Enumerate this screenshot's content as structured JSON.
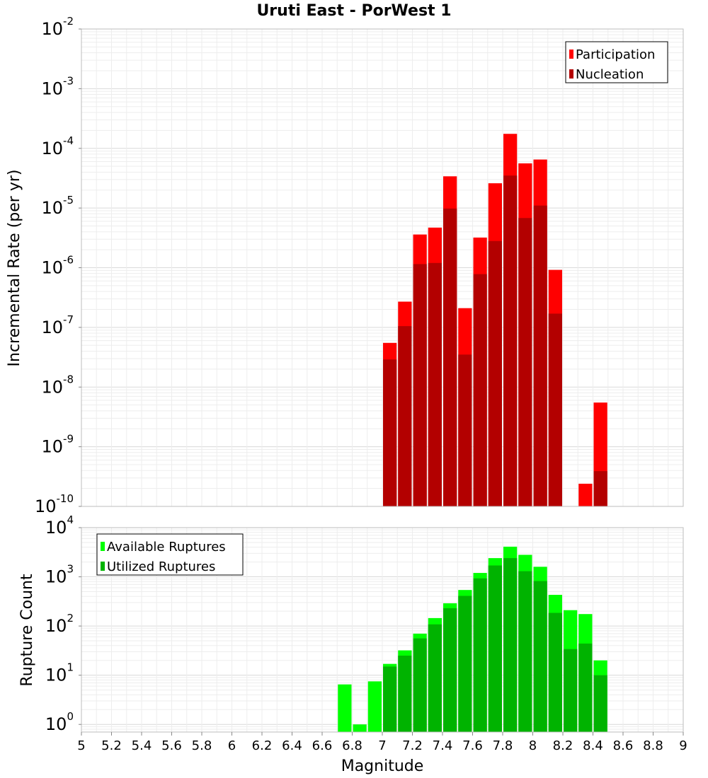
{
  "title": "Uruti East - PorWest 1",
  "xlabel": "Magnitude",
  "chart_data": [
    {
      "type": "bar",
      "ylabel": "Incremental Rate (per yr)",
      "y_scale": "log",
      "xlim": [
        5,
        9
      ],
      "ylim": [
        1e-10,
        0.01
      ],
      "grid": true,
      "legend_position": "top-right",
      "bin_width": 0.1,
      "series": [
        {
          "name": "Participation",
          "color": "#ff0000",
          "points": [
            {
              "x": 7.05,
              "y": 5.5e-08
            },
            {
              "x": 7.15,
              "y": 2.7e-07
            },
            {
              "x": 7.25,
              "y": 3.6e-06
            },
            {
              "x": 7.35,
              "y": 4.7e-06
            },
            {
              "x": 7.45,
              "y": 3.4e-05
            },
            {
              "x": 7.55,
              "y": 2.1e-07
            },
            {
              "x": 7.65,
              "y": 3.2e-06
            },
            {
              "x": 7.75,
              "y": 2.6e-05
            },
            {
              "x": 7.85,
              "y": 0.000175
            },
            {
              "x": 7.95,
              "y": 5.6e-05
            },
            {
              "x": 8.05,
              "y": 6.5e-05
            },
            {
              "x": 8.15,
              "y": 9.2e-07
            },
            {
              "x": 8.35,
              "y": 2.4e-10
            },
            {
              "x": 8.45,
              "y": 5.5e-09
            }
          ]
        },
        {
          "name": "Nucleation",
          "color": "#b30000",
          "points": [
            {
              "x": 7.05,
              "y": 2.9e-08
            },
            {
              "x": 7.15,
              "y": 1.05e-07
            },
            {
              "x": 7.25,
              "y": 1.15e-06
            },
            {
              "x": 7.35,
              "y": 1.2e-06
            },
            {
              "x": 7.45,
              "y": 9.8e-06
            },
            {
              "x": 7.55,
              "y": 3.5e-08
            },
            {
              "x": 7.65,
              "y": 7.8e-07
            },
            {
              "x": 7.75,
              "y": 2.8e-06
            },
            {
              "x": 7.85,
              "y": 3.5e-05
            },
            {
              "x": 7.95,
              "y": 6.8e-06
            },
            {
              "x": 8.05,
              "y": 1.1e-05
            },
            {
              "x": 8.15,
              "y": 1.7e-07
            },
            {
              "x": 8.45,
              "y": 3.9e-10
            }
          ]
        }
      ]
    },
    {
      "type": "bar",
      "ylabel": "Rupture Count",
      "y_scale": "log",
      "xlim": [
        5,
        9
      ],
      "ylim": [
        0.7,
        10000
      ],
      "grid": true,
      "legend_position": "top-left",
      "bin_width": 0.1,
      "series": [
        {
          "name": "Available Ruptures",
          "color": "#00ff00",
          "points": [
            {
              "x": 6.75,
              "y": 6.5
            },
            {
              "x": 6.85,
              "y": 1
            },
            {
              "x": 6.95,
              "y": 7.5
            },
            {
              "x": 7.05,
              "y": 17
            },
            {
              "x": 7.15,
              "y": 32
            },
            {
              "x": 7.25,
              "y": 70
            },
            {
              "x": 7.35,
              "y": 145
            },
            {
              "x": 7.45,
              "y": 290
            },
            {
              "x": 7.55,
              "y": 540
            },
            {
              "x": 7.65,
              "y": 1200
            },
            {
              "x": 7.75,
              "y": 2400
            },
            {
              "x": 7.85,
              "y": 4100
            },
            {
              "x": 7.95,
              "y": 2800
            },
            {
              "x": 8.05,
              "y": 1600
            },
            {
              "x": 8.15,
              "y": 430
            },
            {
              "x": 8.25,
              "y": 210
            },
            {
              "x": 8.35,
              "y": 175
            },
            {
              "x": 8.45,
              "y": 20
            }
          ]
        },
        {
          "name": "Utilized Ruptures",
          "color": "#00b300",
          "points": [
            {
              "x": 7.05,
              "y": 15
            },
            {
              "x": 7.15,
              "y": 25
            },
            {
              "x": 7.25,
              "y": 56
            },
            {
              "x": 7.35,
              "y": 108
            },
            {
              "x": 7.45,
              "y": 230
            },
            {
              "x": 7.55,
              "y": 410
            },
            {
              "x": 7.65,
              "y": 930
            },
            {
              "x": 7.75,
              "y": 1700
            },
            {
              "x": 7.85,
              "y": 2400
            },
            {
              "x": 7.95,
              "y": 1300
            },
            {
              "x": 8.05,
              "y": 820
            },
            {
              "x": 8.15,
              "y": 185
            },
            {
              "x": 8.25,
              "y": 34
            },
            {
              "x": 8.35,
              "y": 44
            },
            {
              "x": 8.45,
              "y": 10
            }
          ]
        }
      ]
    }
  ],
  "x_tick_labels": [
    "5",
    "5.2",
    "5.4",
    "5.6",
    "5.8",
    "6",
    "6.2",
    "6.4",
    "6.6",
    "6.8",
    "7",
    "7.2",
    "7.4",
    "7.6",
    "7.8",
    "8",
    "8.2",
    "8.4",
    "8.6",
    "8.8",
    "9"
  ],
  "top_y_tick_labels": [
    {
      "base": "10",
      "exp": "-10"
    },
    {
      "base": "10",
      "exp": "-9"
    },
    {
      "base": "10",
      "exp": "-8"
    },
    {
      "base": "10",
      "exp": "-7"
    },
    {
      "base": "10",
      "exp": "-6"
    },
    {
      "base": "10",
      "exp": "-5"
    },
    {
      "base": "10",
      "exp": "-4"
    },
    {
      "base": "10",
      "exp": "-3"
    },
    {
      "base": "10",
      "exp": "-2"
    }
  ],
  "bottom_y_tick_labels": [
    {
      "base": "10",
      "exp": "0"
    },
    {
      "base": "10",
      "exp": "1"
    },
    {
      "base": "10",
      "exp": "2"
    },
    {
      "base": "10",
      "exp": "3"
    },
    {
      "base": "10",
      "exp": "4"
    }
  ]
}
